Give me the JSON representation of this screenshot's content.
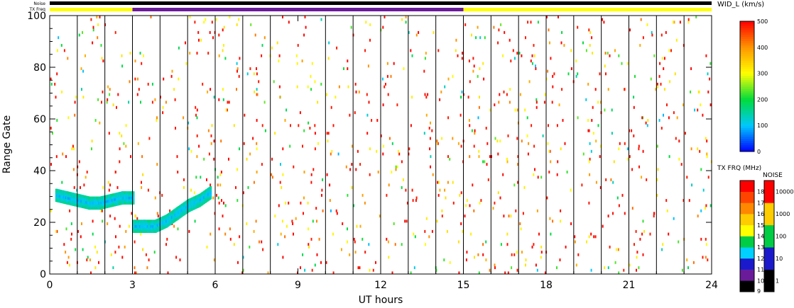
{
  "chart_data": {
    "type": "heatmap",
    "xlabel": "UT hours",
    "ylabel": "Range Gate",
    "xlim": [
      0,
      24
    ],
    "ylim": [
      0,
      100
    ],
    "x_ticks": [
      "0",
      "3",
      "6",
      "9",
      "12",
      "15",
      "18",
      "21",
      "24"
    ],
    "y_ticks": [
      "0",
      "20",
      "40",
      "60",
      "80",
      "100"
    ],
    "scan_boundaries_ut": [
      1.0,
      2.0,
      3.0,
      4.0,
      5.0,
      6.0,
      7.0,
      8.0,
      10.0,
      11.0,
      12.0,
      13.0,
      14.0,
      15.0,
      16.0,
      17.0,
      18.0,
      19.0,
      20.0,
      21.0,
      22.0,
      23.0
    ],
    "status_bars": {
      "noise_label": "Noise",
      "txfreq_label": "TX Freq",
      "noise_color": "#000000",
      "txfreq_segments": [
        {
          "start": 0,
          "end": 3,
          "color": "#ffff00"
        },
        {
          "start": 3,
          "end": 15,
          "color": "#6a1b9a"
        },
        {
          "start": 15,
          "end": 24,
          "color": "#ffff00"
        }
      ]
    },
    "scatter_backscatter": {
      "description_values": "sparse random echoes across all gates, widths mostly 300-500 km/s",
      "count": 1100,
      "seed": 7
    },
    "echo_band": {
      "series": [
        {
          "name": "",
          "x": [
            0.2,
            0.6,
            1.0,
            1.4,
            1.8,
            2.2,
            2.6,
            3.0
          ],
          "y": [
            30,
            29,
            28,
            27,
            27,
            28,
            29,
            29
          ]
        },
        {
          "name": "",
          "x": [
            3.0,
            3.4,
            3.8,
            4.2,
            4.6,
            5.0,
            5.4,
            5.8
          ],
          "y": [
            18,
            18,
            18,
            20,
            23,
            26,
            28,
            31
          ]
        }
      ],
      "width_kms": 80
    },
    "colorbars": {
      "width": {
        "title": "WID_L (km/s)",
        "ticks": [
          "0",
          "100",
          "200",
          "300",
          "400",
          "500"
        ],
        "range": [
          0,
          500
        ]
      },
      "txfreq": {
        "title": "TX FRQ (MHz)",
        "ticks": [
          "9",
          "10",
          "11",
          "12",
          "13",
          "14",
          "15",
          "16",
          "17",
          "18"
        ],
        "colors": [
          "#000000",
          "#6a1b9a",
          "#1a1acc",
          "#00d0ff",
          "#00cc44",
          "#ffff00",
          "#ffcc00",
          "#ff8800",
          "#ff4400",
          "#ff0000"
        ]
      },
      "noise": {
        "title": "NOISE",
        "ticks": [
          "1",
          "10",
          "100",
          "1000",
          "10000"
        ],
        "colors": [
          "#000000",
          "#1a1acc",
          "#00cc44",
          "#ffcc00",
          "#ff0000"
        ]
      }
    }
  }
}
